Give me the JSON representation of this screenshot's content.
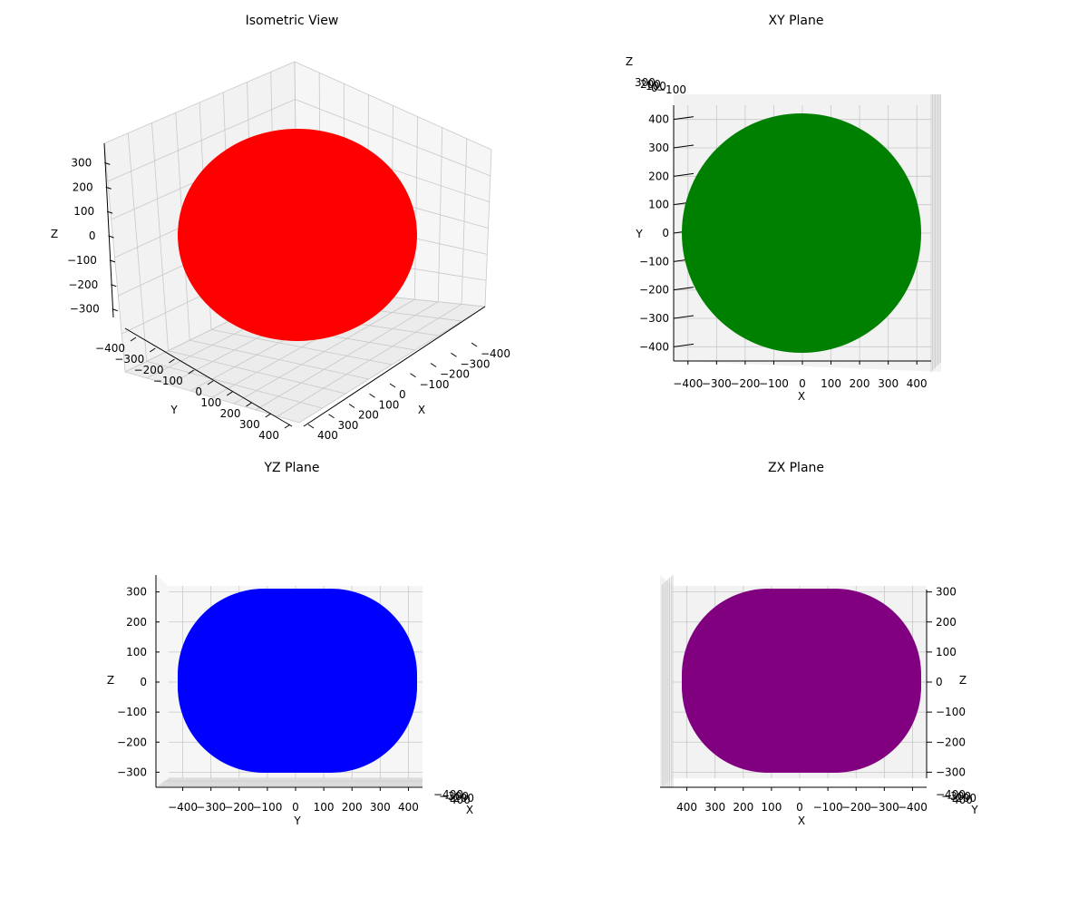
{
  "chart_data": [
    {
      "type": "scatter3d",
      "title": "Isometric View",
      "view": "isometric",
      "color": "#ff0000",
      "shape": "ellipsoid",
      "radii": {
        "x": 450,
        "y": 450,
        "z": 300
      },
      "xlabel": "X",
      "ylabel": "Y",
      "zlabel": "Z",
      "xlim": [
        -450,
        450
      ],
      "ylim": [
        -450,
        450
      ],
      "zlim": [
        -320,
        320
      ],
      "xticks": [
        "−400",
        "−300",
        "−200",
        "−100",
        "0",
        "100",
        "200",
        "300",
        "400"
      ],
      "yticks": [
        "−400",
        "−300",
        "−200",
        "−100",
        "0",
        "100",
        "200",
        "300",
        "400"
      ],
      "zticks": [
        "−300",
        "−200",
        "−100",
        "0",
        "100",
        "200",
        "300"
      ],
      "grid": true
    },
    {
      "type": "scatter3d",
      "title": "XY Plane",
      "view": "top",
      "color": "#008000",
      "shape": "ellipsoid",
      "radii": {
        "x": 450,
        "y": 450,
        "z": 300
      },
      "xlabel": "X",
      "ylabel": "Y",
      "zlabel": "Z",
      "xlim": [
        -450,
        450
      ],
      "ylim": [
        -450,
        450
      ],
      "xticks": [
        "−400",
        "−300",
        "−200",
        "−100",
        "0",
        "100",
        "200",
        "300",
        "400"
      ],
      "yticks": [
        "−400",
        "−300",
        "−200",
        "−100",
        "0",
        "100",
        "200",
        "300",
        "400"
      ],
      "zticks": [
        "300",
        "200",
        "100",
        "0",
        "−100"
      ],
      "grid": true
    },
    {
      "type": "scatter3d",
      "title": "YZ Plane",
      "view": "front",
      "color": "#0000ff",
      "shape": "ellipsoid",
      "radii": {
        "x": 450,
        "y": 450,
        "z": 300
      },
      "xlabel": "X",
      "ylabel": "Y",
      "zlabel": "Z",
      "ylim": [
        -450,
        450
      ],
      "zlim": [
        -320,
        320
      ],
      "yticks": [
        "−400",
        "−300",
        "−200",
        "−100",
        "0",
        "100",
        "200",
        "300",
        "400"
      ],
      "zticks": [
        "−300",
        "−200",
        "−100",
        "0",
        "100",
        "200",
        "300"
      ],
      "xticks": [
        "−400",
        "−300",
        "−200",
        "400"
      ],
      "grid": true
    },
    {
      "type": "scatter3d",
      "title": "ZX Plane",
      "view": "side",
      "color": "#800080",
      "shape": "ellipsoid",
      "radii": {
        "x": 450,
        "y": 450,
        "z": 300
      },
      "xlabel": "X",
      "ylabel": "Y",
      "zlabel": "Z",
      "xlim": [
        450,
        -450
      ],
      "zlim": [
        -320,
        320
      ],
      "xticks": [
        "400",
        "300",
        "200",
        "100",
        "0",
        "−100",
        "−200",
        "−300",
        "−400"
      ],
      "zticks": [
        "−300",
        "−200",
        "−100",
        "0",
        "100",
        "200",
        "300"
      ],
      "yticks": [
        "−400",
        "−300",
        "−200",
        "400"
      ],
      "grid": true
    }
  ]
}
